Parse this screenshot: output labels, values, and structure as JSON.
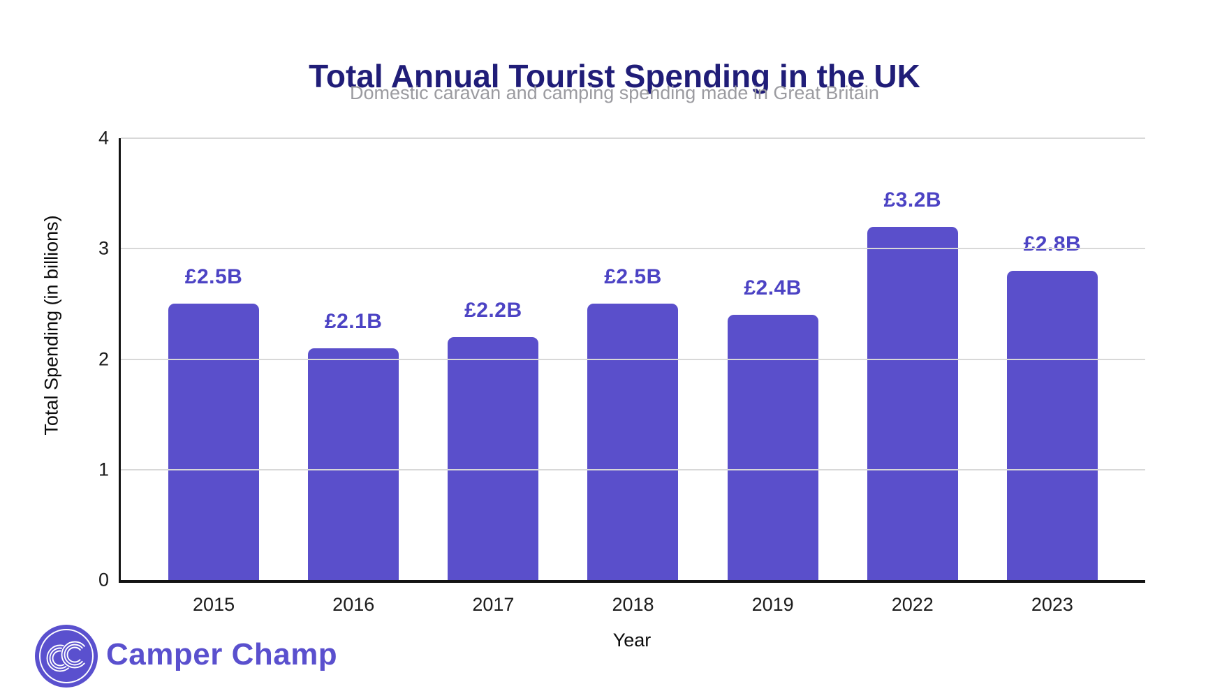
{
  "chart_data": {
    "type": "bar",
    "title": "Total Annual Tourist Spending in the UK",
    "subtitle": "Domestic caravan and camping spending made in Great Britain",
    "categories": [
      "2015",
      "2016",
      "2017",
      "2018",
      "2019",
      "2022",
      "2023"
    ],
    "values": [
      2.5,
      2.1,
      2.2,
      2.5,
      2.4,
      3.2,
      2.8
    ],
    "bar_labels": [
      "£2.5B",
      "£2.1B",
      "£2.2B",
      "£2.5B",
      "£2.4B",
      "£3.2B",
      "£2.8B"
    ],
    "xlabel": "Year",
    "ylabel": "Total Spending (in billions)",
    "ylim": [
      0,
      4
    ],
    "yticks": [
      0,
      1,
      2,
      3,
      4
    ],
    "grid": true,
    "legend": false,
    "bar_color": "#5a4fcb",
    "value_label_color": "#4c43c4"
  },
  "colors": {
    "title": "#201d78",
    "subtitle": "#9b9ba0",
    "gridline": "#d8d8d8",
    "axis": "#141414",
    "brand": "#5a50ce"
  },
  "branding": {
    "logo_monogram": "CC",
    "brand_name": "Camper Champ"
  }
}
